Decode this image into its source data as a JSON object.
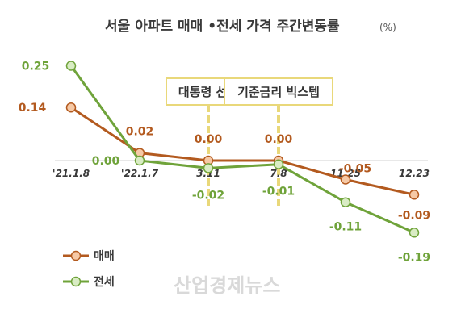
{
  "chart_data": {
    "type": "line",
    "title": "서울 아파트 매매 •전세 가격 주간변동률",
    "title_unit": "(%)",
    "categories": [
      "'21.1.8",
      "'22.1.7",
      "3.11",
      "7.8",
      "11.25",
      "12.23"
    ],
    "series": [
      {
        "name": "매매",
        "values": [
          0.14,
          0.02,
          0.0,
          0.0,
          -0.05,
          -0.09
        ],
        "labels": [
          "0.14",
          "0.02",
          "0.00",
          "0.00",
          "-0.05",
          "-0.09"
        ],
        "color": "#b35a1f",
        "marker_fill": "#f6c9a6"
      },
      {
        "name": "전세",
        "values": [
          0.25,
          0.0,
          -0.02,
          -0.01,
          -0.11,
          -0.19
        ],
        "labels": [
          "0.25",
          "0.00",
          "-0.02",
          "-0.01",
          "-0.11",
          "-0.19"
        ],
        "color": "#6fa33a",
        "marker_fill": "#d9ecc4"
      }
    ],
    "annotations": [
      {
        "text": "대통령 선거",
        "category_index": 2
      },
      {
        "text": "기준금리 빅스텝",
        "category_index": 3
      }
    ],
    "annotation_color": "#e9d87a",
    "legend_position": "bottom-left",
    "grid": false
  },
  "watermark": "산업경제뉴스"
}
